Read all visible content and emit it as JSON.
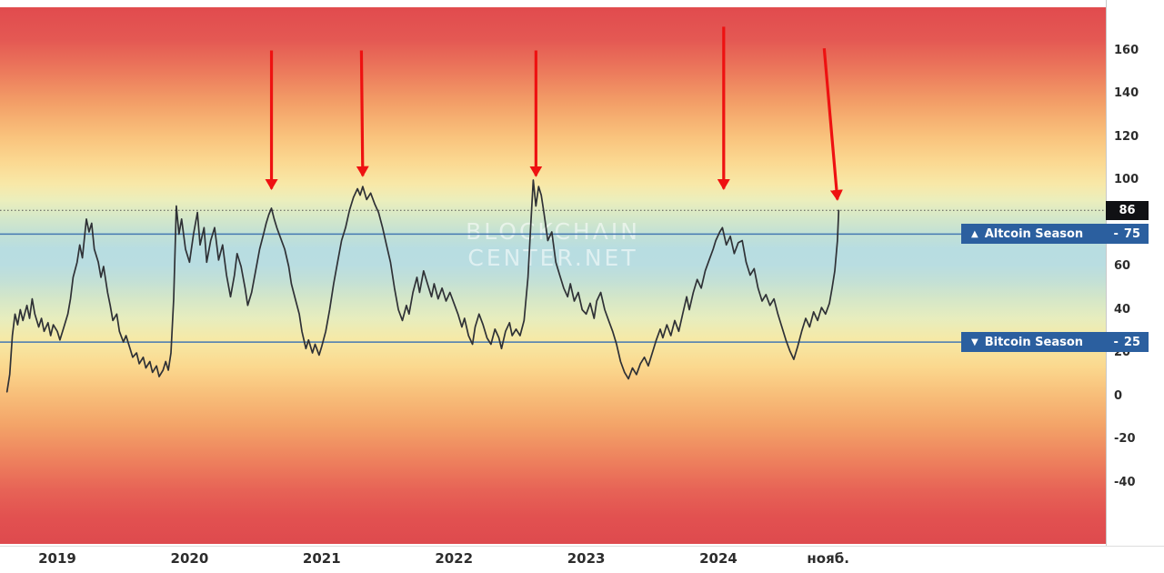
{
  "watermark": {
    "line1": "BLOCKCHAIN",
    "line2": "CENTER.NET"
  },
  "colors": {
    "series_line": "#2f3136",
    "arrow": "#ee1111",
    "level_line": "#4579b2",
    "dotted_line": "#555555",
    "badge_blue": "#2b5f9f",
    "badge_dark": "#101114",
    "axis_text": "#2c2c2c"
  },
  "levels": {
    "altcoin": {
      "icon": "▲",
      "label": "Altcoin Season",
      "separator": "-",
      "value": 75
    },
    "bitcoin": {
      "icon": "▼",
      "label": "Bitcoin Season",
      "separator": "-",
      "value": 25
    }
  },
  "chart_data": {
    "type": "line",
    "x_unit": "decimal_year",
    "xlim": [
      2018.57,
      2026.9
    ],
    "ylim": [
      -69,
      180
    ],
    "grid": "off",
    "current_value": 86,
    "y_ticks": [
      160,
      140,
      120,
      100,
      60,
      40,
      20,
      0,
      -20,
      -40
    ],
    "x_ticks": [
      {
        "t": 2019,
        "label": "2019"
      },
      {
        "t": 2020,
        "label": "2020"
      },
      {
        "t": 2021,
        "label": "2021"
      },
      {
        "t": 2022,
        "label": "2022"
      },
      {
        "t": 2023,
        "label": "2023"
      },
      {
        "t": 2024,
        "label": "2024"
      },
      {
        "t": 2024.83,
        "label": "нояб."
      }
    ],
    "arrows": [
      {
        "x1": 2020.62,
        "v1": 160,
        "x2": 2020.62,
        "v2": 96
      },
      {
        "x1": 2021.3,
        "v1": 160,
        "x2": 2021.31,
        "v2": 102
      },
      {
        "x1": 2022.62,
        "v1": 160,
        "x2": 2022.62,
        "v2": 102
      },
      {
        "x1": 2024.04,
        "v1": 171,
        "x2": 2024.04,
        "v2": 96
      },
      {
        "x1": 2024.8,
        "v1": 161,
        "x2": 2024.9,
        "v2": 91
      }
    ],
    "points": [
      [
        2018.62,
        2
      ],
      [
        2018.64,
        10
      ],
      [
        2018.66,
        28
      ],
      [
        2018.68,
        38
      ],
      [
        2018.7,
        33
      ],
      [
        2018.72,
        40
      ],
      [
        2018.74,
        35
      ],
      [
        2018.77,
        42
      ],
      [
        2018.79,
        36
      ],
      [
        2018.81,
        45
      ],
      [
        2018.83,
        38
      ],
      [
        2018.86,
        32
      ],
      [
        2018.88,
        36
      ],
      [
        2018.9,
        30
      ],
      [
        2018.93,
        34
      ],
      [
        2018.95,
        28
      ],
      [
        2018.97,
        33
      ],
      [
        2019.0,
        30
      ],
      [
        2019.02,
        26
      ],
      [
        2019.05,
        32
      ],
      [
        2019.08,
        38
      ],
      [
        2019.1,
        45
      ],
      [
        2019.12,
        55
      ],
      [
        2019.15,
        62
      ],
      [
        2019.17,
        70
      ],
      [
        2019.19,
        64
      ],
      [
        2019.22,
        82
      ],
      [
        2019.24,
        76
      ],
      [
        2019.26,
        80
      ],
      [
        2019.28,
        68
      ],
      [
        2019.31,
        62
      ],
      [
        2019.33,
        55
      ],
      [
        2019.35,
        60
      ],
      [
        2019.38,
        48
      ],
      [
        2019.4,
        42
      ],
      [
        2019.42,
        35
      ],
      [
        2019.45,
        38
      ],
      [
        2019.47,
        30
      ],
      [
        2019.5,
        25
      ],
      [
        2019.52,
        28
      ],
      [
        2019.55,
        22
      ],
      [
        2019.57,
        18
      ],
      [
        2019.6,
        20
      ],
      [
        2019.62,
        15
      ],
      [
        2019.65,
        18
      ],
      [
        2019.67,
        13
      ],
      [
        2019.7,
        16
      ],
      [
        2019.72,
        11
      ],
      [
        2019.75,
        14
      ],
      [
        2019.77,
        9
      ],
      [
        2019.8,
        12
      ],
      [
        2019.82,
        16
      ],
      [
        2019.84,
        12
      ],
      [
        2019.86,
        20
      ],
      [
        2019.88,
        45
      ],
      [
        2019.9,
        88
      ],
      [
        2019.92,
        75
      ],
      [
        2019.94,
        82
      ],
      [
        2019.97,
        68
      ],
      [
        2020.0,
        62
      ],
      [
        2020.03,
        75
      ],
      [
        2020.06,
        85
      ],
      [
        2020.08,
        70
      ],
      [
        2020.11,
        78
      ],
      [
        2020.13,
        62
      ],
      [
        2020.16,
        72
      ],
      [
        2020.19,
        78
      ],
      [
        2020.22,
        63
      ],
      [
        2020.25,
        70
      ],
      [
        2020.28,
        56
      ],
      [
        2020.31,
        46
      ],
      [
        2020.34,
        56
      ],
      [
        2020.36,
        66
      ],
      [
        2020.39,
        60
      ],
      [
        2020.42,
        50
      ],
      [
        2020.44,
        42
      ],
      [
        2020.47,
        48
      ],
      [
        2020.5,
        58
      ],
      [
        2020.53,
        68
      ],
      [
        2020.56,
        75
      ],
      [
        2020.58,
        80
      ],
      [
        2020.6,
        84
      ],
      [
        2020.62,
        87
      ],
      [
        2020.64,
        82
      ],
      [
        2020.66,
        78
      ],
      [
        2020.69,
        73
      ],
      [
        2020.72,
        68
      ],
      [
        2020.75,
        60
      ],
      [
        2020.77,
        52
      ],
      [
        2020.8,
        45
      ],
      [
        2020.83,
        38
      ],
      [
        2020.85,
        30
      ],
      [
        2020.88,
        22
      ],
      [
        2020.9,
        26
      ],
      [
        2020.93,
        20
      ],
      [
        2020.95,
        24
      ],
      [
        2020.98,
        19
      ],
      [
        2021.0,
        23
      ],
      [
        2021.03,
        30
      ],
      [
        2021.06,
        40
      ],
      [
        2021.09,
        52
      ],
      [
        2021.12,
        62
      ],
      [
        2021.15,
        72
      ],
      [
        2021.18,
        78
      ],
      [
        2021.21,
        86
      ],
      [
        2021.24,
        92
      ],
      [
        2021.27,
        96
      ],
      [
        2021.29,
        93
      ],
      [
        2021.31,
        97
      ],
      [
        2021.34,
        91
      ],
      [
        2021.37,
        94
      ],
      [
        2021.4,
        89
      ],
      [
        2021.43,
        85
      ],
      [
        2021.46,
        78
      ],
      [
        2021.49,
        70
      ],
      [
        2021.52,
        62
      ],
      [
        2021.55,
        50
      ],
      [
        2021.58,
        40
      ],
      [
        2021.61,
        35
      ],
      [
        2021.64,
        42
      ],
      [
        2021.66,
        38
      ],
      [
        2021.69,
        48
      ],
      [
        2021.72,
        55
      ],
      [
        2021.74,
        48
      ],
      [
        2021.77,
        58
      ],
      [
        2021.8,
        52
      ],
      [
        2021.83,
        46
      ],
      [
        2021.85,
        52
      ],
      [
        2021.88,
        45
      ],
      [
        2021.91,
        50
      ],
      [
        2021.94,
        44
      ],
      [
        2021.97,
        48
      ],
      [
        2022.0,
        43
      ],
      [
        2022.03,
        38
      ],
      [
        2022.06,
        32
      ],
      [
        2022.08,
        36
      ],
      [
        2022.11,
        28
      ],
      [
        2022.14,
        24
      ],
      [
        2022.16,
        32
      ],
      [
        2022.19,
        38
      ],
      [
        2022.22,
        33
      ],
      [
        2022.25,
        27
      ],
      [
        2022.28,
        24
      ],
      [
        2022.31,
        31
      ],
      [
        2022.34,
        27
      ],
      [
        2022.36,
        22
      ],
      [
        2022.39,
        30
      ],
      [
        2022.42,
        34
      ],
      [
        2022.44,
        28
      ],
      [
        2022.47,
        31
      ],
      [
        2022.5,
        28
      ],
      [
        2022.53,
        35
      ],
      [
        2022.56,
        55
      ],
      [
        2022.58,
        78
      ],
      [
        2022.6,
        100
      ],
      [
        2022.62,
        88
      ],
      [
        2022.64,
        97
      ],
      [
        2022.66,
        93
      ],
      [
        2022.68,
        85
      ],
      [
        2022.71,
        72
      ],
      [
        2022.74,
        76
      ],
      [
        2022.77,
        62
      ],
      [
        2022.8,
        56
      ],
      [
        2022.83,
        50
      ],
      [
        2022.86,
        46
      ],
      [
        2022.88,
        52
      ],
      [
        2022.91,
        44
      ],
      [
        2022.94,
        48
      ],
      [
        2022.97,
        40
      ],
      [
        2023.0,
        38
      ],
      [
        2023.03,
        43
      ],
      [
        2023.06,
        36
      ],
      [
        2023.08,
        44
      ],
      [
        2023.11,
        48
      ],
      [
        2023.14,
        40
      ],
      [
        2023.17,
        35
      ],
      [
        2023.2,
        30
      ],
      [
        2023.23,
        24
      ],
      [
        2023.26,
        16
      ],
      [
        2023.29,
        11
      ],
      [
        2023.32,
        8
      ],
      [
        2023.35,
        13
      ],
      [
        2023.38,
        10
      ],
      [
        2023.41,
        15
      ],
      [
        2023.44,
        18
      ],
      [
        2023.47,
        14
      ],
      [
        2023.5,
        20
      ],
      [
        2023.53,
        26
      ],
      [
        2023.56,
        31
      ],
      [
        2023.58,
        27
      ],
      [
        2023.61,
        33
      ],
      [
        2023.64,
        28
      ],
      [
        2023.67,
        35
      ],
      [
        2023.7,
        30
      ],
      [
        2023.73,
        38
      ],
      [
        2023.76,
        46
      ],
      [
        2023.78,
        40
      ],
      [
        2023.81,
        48
      ],
      [
        2023.84,
        54
      ],
      [
        2023.87,
        50
      ],
      [
        2023.9,
        58
      ],
      [
        2023.93,
        63
      ],
      [
        2023.96,
        68
      ],
      [
        2023.98,
        72
      ],
      [
        2024.01,
        76
      ],
      [
        2024.03,
        78
      ],
      [
        2024.06,
        70
      ],
      [
        2024.09,
        74
      ],
      [
        2024.12,
        66
      ],
      [
        2024.15,
        71
      ],
      [
        2024.18,
        72
      ],
      [
        2024.21,
        62
      ],
      [
        2024.24,
        56
      ],
      [
        2024.27,
        59
      ],
      [
        2024.3,
        50
      ],
      [
        2024.33,
        44
      ],
      [
        2024.36,
        47
      ],
      [
        2024.39,
        42
      ],
      [
        2024.42,
        45
      ],
      [
        2024.45,
        38
      ],
      [
        2024.48,
        32
      ],
      [
        2024.51,
        26
      ],
      [
        2024.54,
        21
      ],
      [
        2024.57,
        17
      ],
      [
        2024.6,
        23
      ],
      [
        2024.63,
        30
      ],
      [
        2024.66,
        36
      ],
      [
        2024.69,
        32
      ],
      [
        2024.72,
        39
      ],
      [
        2024.75,
        35
      ],
      [
        2024.78,
        41
      ],
      [
        2024.81,
        38
      ],
      [
        2024.84,
        43
      ],
      [
        2024.86,
        50
      ],
      [
        2024.88,
        58
      ],
      [
        2024.9,
        72
      ],
      [
        2024.91,
        86
      ]
    ]
  }
}
